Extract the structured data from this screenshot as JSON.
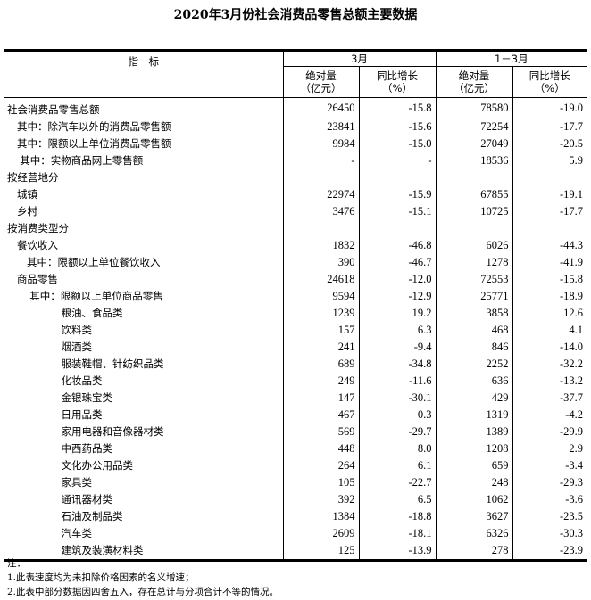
{
  "title": "2020年3月份社会消费品零售总额主要数据",
  "header": {
    "indicator": "指　标",
    "period1": "3月",
    "period2": "1－3月",
    "abs": "绝对量",
    "abs_unit": "（亿元）",
    "yoy": "同比增长",
    "yoy_unit": "（%）"
  },
  "rows": [
    {
      "label": "社会消费品零售总额",
      "indent": 0,
      "v": [
        "26450",
        "-15.8",
        "78580",
        "-19.0"
      ]
    },
    {
      "label": "其中：除汽车以外的消费品零售额",
      "indent": 1,
      "v": [
        "23841",
        "-15.6",
        "72254",
        "-17.7"
      ]
    },
    {
      "label": "其中：限额以上单位消费品零售额",
      "indent": 1,
      "v": [
        "9984",
        "-15.0",
        "27049",
        "-20.5"
      ]
    },
    {
      "label": "其中：实物商品网上零售额",
      "indent": 1.3,
      "v": [
        "-",
        "-",
        "18536",
        "5.9"
      ]
    },
    {
      "label": "按经营地分",
      "indent": 0,
      "v": [
        "",
        "",
        "",
        ""
      ]
    },
    {
      "label": "城镇",
      "indent": 1,
      "v": [
        "22974",
        "-15.9",
        "67855",
        "-19.1"
      ]
    },
    {
      "label": "乡村",
      "indent": 1,
      "v": [
        "3476",
        "-15.1",
        "10725",
        "-17.7"
      ]
    },
    {
      "label": "按消费类型分",
      "indent": 0,
      "v": [
        "",
        "",
        "",
        ""
      ]
    },
    {
      "label": "餐饮收入",
      "indent": 1,
      "v": [
        "1832",
        "-46.8",
        "6026",
        "-44.3"
      ]
    },
    {
      "label": "其中：限额以上单位餐饮收入",
      "indent": 2,
      "v": [
        "390",
        "-46.7",
        "1278",
        "-41.9"
      ]
    },
    {
      "label": "商品零售",
      "indent": 1,
      "v": [
        "24618",
        "-12.0",
        "72553",
        "-15.8"
      ]
    },
    {
      "label": "其中：限额以上单位商品零售",
      "indent": 2.3,
      "v": [
        "9594",
        "-12.9",
        "25771",
        "-18.9"
      ]
    },
    {
      "label": "粮油、食品类",
      "indent": 5.5,
      "v": [
        "1239",
        "19.2",
        "3858",
        "12.6"
      ]
    },
    {
      "label": "饮料类",
      "indent": 5.5,
      "v": [
        "157",
        "6.3",
        "468",
        "4.1"
      ]
    },
    {
      "label": "烟酒类",
      "indent": 5.5,
      "v": [
        "241",
        "-9.4",
        "846",
        "-14.0"
      ]
    },
    {
      "label": "服装鞋帽、针纺织品类",
      "indent": 5.5,
      "v": [
        "689",
        "-34.8",
        "2252",
        "-32.2"
      ]
    },
    {
      "label": "化妆品类",
      "indent": 5.5,
      "v": [
        "249",
        "-11.6",
        "636",
        "-13.2"
      ]
    },
    {
      "label": "金银珠宝类",
      "indent": 5.5,
      "v": [
        "147",
        "-30.1",
        "429",
        "-37.7"
      ]
    },
    {
      "label": "日用品类",
      "indent": 5.5,
      "v": [
        "467",
        "0.3",
        "1319",
        "-4.2"
      ]
    },
    {
      "label": "家用电器和音像器材类",
      "indent": 5.5,
      "v": [
        "569",
        "-29.7",
        "1389",
        "-29.9"
      ]
    },
    {
      "label": "中西药品类",
      "indent": 5.5,
      "v": [
        "448",
        "8.0",
        "1208",
        "2.9"
      ]
    },
    {
      "label": "文化办公用品类",
      "indent": 5.5,
      "v": [
        "264",
        "6.1",
        "659",
        "-3.4"
      ]
    },
    {
      "label": "家具类",
      "indent": 5.5,
      "v": [
        "105",
        "-22.7",
        "248",
        "-29.3"
      ]
    },
    {
      "label": "通讯器材类",
      "indent": 5.5,
      "v": [
        "392",
        "6.5",
        "1062",
        "-3.6"
      ]
    },
    {
      "label": "石油及制品类",
      "indent": 5.5,
      "v": [
        "1384",
        "-18.8",
        "3627",
        "-23.5"
      ]
    },
    {
      "label": "汽车类",
      "indent": 5.5,
      "v": [
        "2609",
        "-18.1",
        "6326",
        "-30.3"
      ]
    },
    {
      "label": "建筑及装潢材料类",
      "indent": 5.5,
      "v": [
        "125",
        "-13.9",
        "278",
        "-23.9"
      ]
    }
  ],
  "notes": [
    "注：",
    "1.此表速度均为未扣除价格因素的名义增速；",
    "2.此表中部分数据因四舍五入，存在总计与分项合计不等的情况。"
  ]
}
